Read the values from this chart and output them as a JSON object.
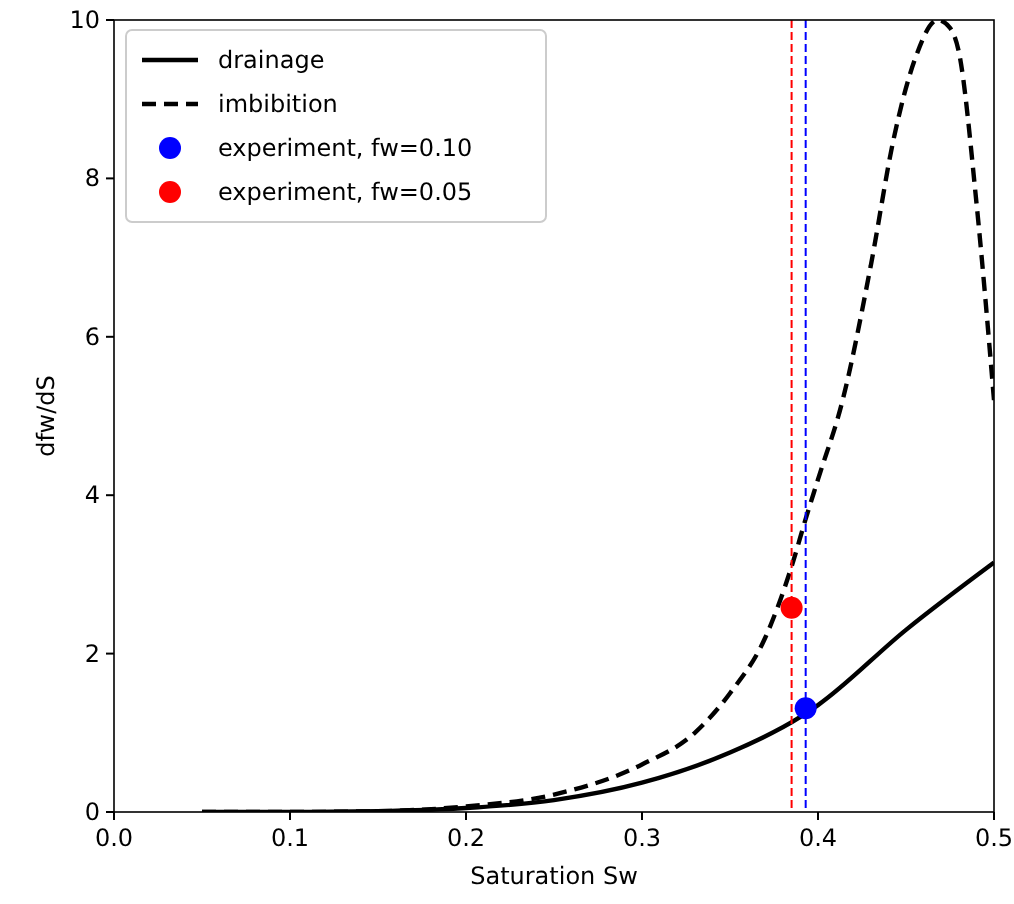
{
  "chart_data": {
    "type": "line",
    "xlabel": "Saturation Sw",
    "ylabel": "dfw/dS",
    "xlim": [
      0,
      0.5
    ],
    "ylim": [
      0,
      10
    ],
    "xticks": [
      {
        "value": 0,
        "label": "0.0"
      },
      0.1,
      0.2,
      0.3,
      0.4,
      0.5
    ],
    "yticks": [
      0,
      2,
      4,
      6,
      8,
      10
    ],
    "grid": false,
    "legend": "top left",
    "series": [
      {
        "name": "drainage",
        "line_style": "solid",
        "color": "#000000",
        "x": [
          0.05,
          0.1,
          0.15,
          0.2,
          0.25,
          0.3,
          0.35,
          0.39,
          0.4,
          0.45,
          0.5
        ],
        "values": [
          0.0,
          0.0,
          0.01,
          0.05,
          0.15,
          0.37,
          0.75,
          1.2,
          1.35,
          2.3,
          3.15
        ]
      },
      {
        "name": "imbibition",
        "line_style": "dashed",
        "color": "#000000",
        "x": [
          0.05,
          0.1,
          0.15,
          0.2,
          0.25,
          0.3,
          0.33,
          0.35,
          0.37,
          0.385,
          0.393,
          0.4,
          0.414,
          0.43,
          0.443,
          0.455,
          0.468,
          0.475,
          0.48,
          0.49,
          0.5
        ],
        "values": [
          0.0,
          0.0,
          0.01,
          0.07,
          0.22,
          0.6,
          1.0,
          1.5,
          2.2,
          3.1,
          3.7,
          4.2,
          5.2,
          6.9,
          8.5,
          9.5,
          10,
          9.9,
          9.6,
          7.7,
          5.2
        ]
      },
      {
        "name": "experiment, fw=0.10",
        "type": "scatter",
        "marker": "circle",
        "color": "#0000ff",
        "x": [
          0.393
        ],
        "values": [
          1.31
        ]
      },
      {
        "name": "experiment, fw=0.05",
        "type": "scatter",
        "marker": "circle",
        "color": "#ff0000",
        "x": [
          0.385
        ],
        "values": [
          2.58
        ]
      }
    ],
    "ref_lines": [
      {
        "axis": "x",
        "value": 0.385,
        "color": "#ff0000",
        "line_style": "dashed"
      },
      {
        "axis": "x",
        "value": 0.393,
        "color": "#0000ff",
        "line_style": "dashed"
      }
    ]
  }
}
